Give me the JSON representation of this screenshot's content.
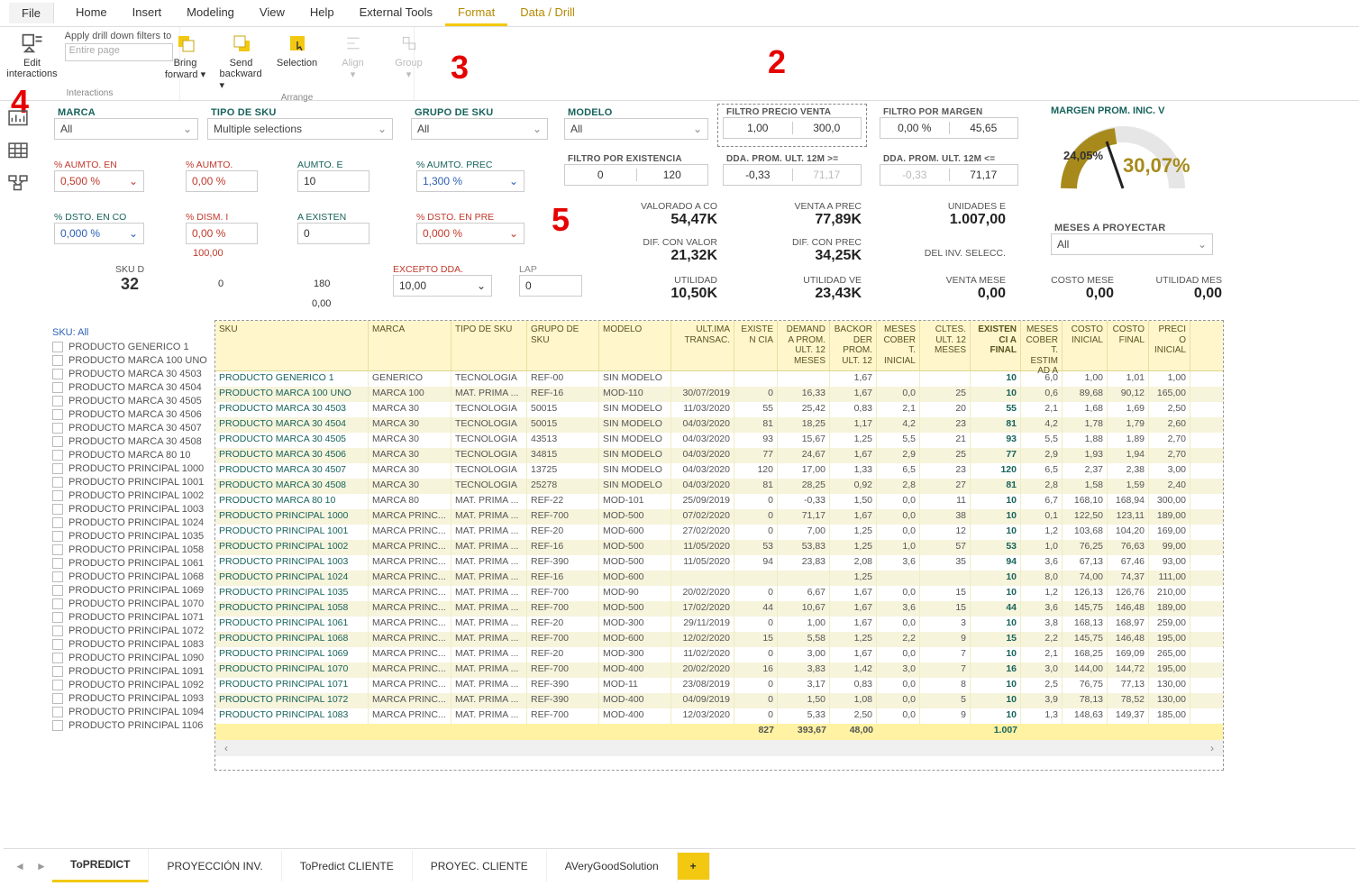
{
  "menu": {
    "file": "File",
    "tabs": [
      "Home",
      "Insert",
      "Modeling",
      "View",
      "Help",
      "External Tools",
      "Format",
      "Data / Drill"
    ]
  },
  "ribbon": {
    "interactions": {
      "edit": "Edit",
      "interactions": "interactions",
      "apply": "Apply drill down filters to",
      "placeholder": "Entire page",
      "group": "Interactions"
    },
    "arrange": {
      "bring": "Bring",
      "fwd": "forward",
      "send": "Send",
      "bwd": "backward",
      "selection": "Selection",
      "align": "Align",
      "groupb": "Group",
      "group": "Arrange"
    }
  },
  "ann": {
    "n2": "2",
    "n3": "3",
    "n4": "4",
    "n5": "5"
  },
  "slicers": {
    "marca": {
      "title": "MARCA",
      "sel": "All"
    },
    "tiposku": {
      "title": "TIPO DE SKU",
      "sel": "Multiple selections"
    },
    "gruposku": {
      "title": "GRUPO DE SKU",
      "sel": "All"
    },
    "modelo": {
      "title": "MODELO",
      "sel": "All"
    },
    "fpv": {
      "title": "FILTRO PRECIO VENTA",
      "a": "1,00",
      "b": "300,0"
    },
    "fpm": {
      "title": "FILTRO POR MARGEN",
      "a": "0,00 %",
      "b": "45,65"
    },
    "pctAumtoEn": {
      "label": "% AUMTO. EN",
      "val": "0,500 %"
    },
    "pctAumto": {
      "label": "% AUMTO.",
      "val": "0,00 %"
    },
    "aumtoE": {
      "label": "AUMTO. E",
      "val": "10"
    },
    "pctAumtoPrec": {
      "label": "% AUMTO. PREC",
      "val": "1,300 %"
    },
    "pctDstoEnCo": {
      "label": "% DSTO. EN CO",
      "val": "0,000 %"
    },
    "pctDismI": {
      "label": "% DISM. I",
      "val": "0,00 %"
    },
    "aExisten": {
      "label": "A EXISTEN",
      "val": "0"
    },
    "pctDstoEnPre": {
      "label": "% DSTO. EN PRE",
      "val": "0,000 %"
    },
    "skuD": {
      "label": "SKU D",
      "val": "32"
    },
    "z100": {
      "val": "100,00"
    },
    "z0": {
      "val": "0"
    },
    "z180": {
      "val": "180"
    },
    "z0b": {
      "val": "0,00"
    },
    "exceptoDda": {
      "label": "EXCEPTO DDA.",
      "val": "10,00"
    },
    "lap": {
      "label": "LAP",
      "val": "0"
    },
    "fpe": {
      "title": "FILTRO POR EXISTENCIA",
      "a": "0",
      "b": "120"
    },
    "ddage": {
      "title": "DDA. PROM. ULT. 12M >=",
      "a": "-0,33",
      "b": "71,17"
    },
    "ddale": {
      "title": "DDA. PROM. ULT. 12M <=",
      "a": "-0,33",
      "b": "71,17"
    }
  },
  "kpis": {
    "valc": {
      "label": "VALORADO A CO",
      "val": "54,47K"
    },
    "venp": {
      "label": "VENTA A PREC",
      "val": "77,89K"
    },
    "unid": {
      "label": "UNIDADES E",
      "val": "1.007,00"
    },
    "difv": {
      "label": "DIF. CON VALOR",
      "val": "21,32K"
    },
    "difp": {
      "label": "DIF. CON PREC",
      "val": "34,25K"
    },
    "delinv": {
      "label": "DEL INV. SELECC.",
      "val": ""
    },
    "util": {
      "label": "UTILIDAD",
      "val": "10,50K"
    },
    "utilv": {
      "label": "UTILIDAD VE",
      "val": "23,43K"
    },
    "vmese": {
      "label": "VENTA MESE",
      "val": "0,00"
    },
    "cmese": {
      "label": "COSTO MESE",
      "val": "0,00"
    },
    "umese": {
      "label": "UTILIDAD MES",
      "val": "0,00"
    }
  },
  "gauge": {
    "title": "MARGEN PROM. INIC. V",
    "left": "24,05%",
    "right": "30,07%",
    "meses": {
      "title": "MESES A PROYECTAR",
      "sel": "All"
    }
  },
  "skuFilter": {
    "hdr": "SKU: All",
    "items": [
      "PRODUCTO GENERICO 1",
      "PRODUCTO MARCA 100 UNO",
      "PRODUCTO MARCA 30 4503",
      "PRODUCTO MARCA 30 4504",
      "PRODUCTO MARCA 30 4505",
      "PRODUCTO MARCA 30 4506",
      "PRODUCTO MARCA 30 4507",
      "PRODUCTO MARCA 30 4508",
      "PRODUCTO MARCA 80 10",
      "PRODUCTO PRINCIPAL 1000",
      "PRODUCTO PRINCIPAL 1001",
      "PRODUCTO PRINCIPAL 1002",
      "PRODUCTO PRINCIPAL 1003",
      "PRODUCTO PRINCIPAL 1024",
      "PRODUCTO PRINCIPAL 1035",
      "PRODUCTO PRINCIPAL 1058",
      "PRODUCTO PRINCIPAL 1061",
      "PRODUCTO PRINCIPAL 1068",
      "PRODUCTO PRINCIPAL 1069",
      "PRODUCTO PRINCIPAL 1070",
      "PRODUCTO PRINCIPAL 1071",
      "PRODUCTO PRINCIPAL 1072",
      "PRODUCTO PRINCIPAL 1083",
      "PRODUCTO PRINCIPAL 1090",
      "PRODUCTO PRINCIPAL 1091",
      "PRODUCTO PRINCIPAL 1092",
      "PRODUCTO PRINCIPAL 1093",
      "PRODUCTO PRINCIPAL 1094",
      "PRODUCTO PRINCIPAL 1106"
    ]
  },
  "table": {
    "headers": [
      "SKU",
      "MARCA",
      "TIPO DE SKU",
      "GRUPO DE SKU",
      "MODELO",
      "ULT.IMA TRANSAC.",
      "EXISTEN CIA",
      "DEMANDA PROM. ULT. 12 MESES",
      "BACKOR DER PROM. ULT. 12",
      "MESES COBERT. INICIAL",
      "CLTES. ULT. 12 MESES",
      "EXISTENCI A FINAL",
      "MESES COBERT. ESTIMAD A",
      "COSTO INICIAL",
      "COSTO FINAL",
      "PRECIO INICIAL"
    ],
    "rows": [
      [
        "PRODUCTO GENERICO 1",
        "GENERICO",
        "TECNOLOGIA",
        "REF-00",
        "SIN MODELO",
        "",
        "",
        "",
        "1,67",
        "",
        "",
        "10",
        "6,0",
        "1,00",
        "1,01",
        "1,00"
      ],
      [
        "PRODUCTO MARCA 100 UNO",
        "MARCA 100",
        "MAT. PRIMA ...",
        "REF-16",
        "MOD-110",
        "30/07/2019",
        "0",
        "16,33",
        "1,67",
        "0,0",
        "25",
        "10",
        "0,6",
        "89,68",
        "90,12",
        "165,00"
      ],
      [
        "PRODUCTO MARCA 30 4503",
        "MARCA 30",
        "TECNOLOGIA",
        "50015",
        "SIN MODELO",
        "11/03/2020",
        "55",
        "25,42",
        "0,83",
        "2,1",
        "20",
        "55",
        "2,1",
        "1,68",
        "1,69",
        "2,50"
      ],
      [
        "PRODUCTO MARCA 30 4504",
        "MARCA 30",
        "TECNOLOGIA",
        "50015",
        "SIN MODELO",
        "04/03/2020",
        "81",
        "18,25",
        "1,17",
        "4,2",
        "23",
        "81",
        "4,2",
        "1,78",
        "1,79",
        "2,60"
      ],
      [
        "PRODUCTO MARCA 30 4505",
        "MARCA 30",
        "TECNOLOGIA",
        "43513",
        "SIN MODELO",
        "04/03/2020",
        "93",
        "15,67",
        "1,25",
        "5,5",
        "21",
        "93",
        "5,5",
        "1,88",
        "1,89",
        "2,70"
      ],
      [
        "PRODUCTO MARCA 30 4506",
        "MARCA 30",
        "TECNOLOGIA",
        "34815",
        "SIN MODELO",
        "04/03/2020",
        "77",
        "24,67",
        "1,67",
        "2,9",
        "25",
        "77",
        "2,9",
        "1,93",
        "1,94",
        "2,70"
      ],
      [
        "PRODUCTO MARCA 30 4507",
        "MARCA 30",
        "TECNOLOGIA",
        "13725",
        "SIN MODELO",
        "04/03/2020",
        "120",
        "17,00",
        "1,33",
        "6,5",
        "23",
        "120",
        "6,5",
        "2,37",
        "2,38",
        "3,00"
      ],
      [
        "PRODUCTO MARCA 30 4508",
        "MARCA 30",
        "TECNOLOGIA",
        "25278",
        "SIN MODELO",
        "04/03/2020",
        "81",
        "28,25",
        "0,92",
        "2,8",
        "27",
        "81",
        "2,8",
        "1,58",
        "1,59",
        "2,40"
      ],
      [
        "PRODUCTO MARCA 80 10",
        "MARCA 80",
        "MAT. PRIMA ...",
        "REF-22",
        "MOD-101",
        "25/09/2019",
        "0",
        "-0,33",
        "1,50",
        "0,0",
        "11",
        "10",
        "6,7",
        "168,10",
        "168,94",
        "300,00"
      ],
      [
        "PRODUCTO PRINCIPAL 1000",
        "MARCA PRINC...",
        "MAT. PRIMA ...",
        "REF-700",
        "MOD-500",
        "07/02/2020",
        "0",
        "71,17",
        "1,67",
        "0,0",
        "38",
        "10",
        "0,1",
        "122,50",
        "123,11",
        "189,00"
      ],
      [
        "PRODUCTO PRINCIPAL 1001",
        "MARCA PRINC...",
        "MAT. PRIMA ...",
        "REF-20",
        "MOD-600",
        "27/02/2020",
        "0",
        "7,00",
        "1,25",
        "0,0",
        "12",
        "10",
        "1,2",
        "103,68",
        "104,20",
        "169,00"
      ],
      [
        "PRODUCTO PRINCIPAL 1002",
        "MARCA PRINC...",
        "MAT. PRIMA ...",
        "REF-16",
        "MOD-500",
        "11/05/2020",
        "53",
        "53,83",
        "1,25",
        "1,0",
        "57",
        "53",
        "1,0",
        "76,25",
        "76,63",
        "99,00"
      ],
      [
        "PRODUCTO PRINCIPAL 1003",
        "MARCA PRINC...",
        "MAT. PRIMA ...",
        "REF-390",
        "MOD-500",
        "11/05/2020",
        "94",
        "23,83",
        "2,08",
        "3,6",
        "35",
        "94",
        "3,6",
        "67,13",
        "67,46",
        "93,00"
      ],
      [
        "PRODUCTO PRINCIPAL 1024",
        "MARCA PRINC...",
        "MAT. PRIMA ...",
        "REF-16",
        "MOD-600",
        "",
        "",
        "",
        "1,25",
        "",
        "",
        "10",
        "8,0",
        "74,00",
        "74,37",
        "111,00"
      ],
      [
        "PRODUCTO PRINCIPAL 1035",
        "MARCA PRINC...",
        "MAT. PRIMA ...",
        "REF-700",
        "MOD-90",
        "20/02/2020",
        "0",
        "6,67",
        "1,67",
        "0,0",
        "15",
        "10",
        "1,2",
        "126,13",
        "126,76",
        "210,00"
      ],
      [
        "PRODUCTO PRINCIPAL 1058",
        "MARCA PRINC...",
        "MAT. PRIMA ...",
        "REF-700",
        "MOD-500",
        "17/02/2020",
        "44",
        "10,67",
        "1,67",
        "3,6",
        "15",
        "44",
        "3,6",
        "145,75",
        "146,48",
        "189,00"
      ],
      [
        "PRODUCTO PRINCIPAL 1061",
        "MARCA PRINC...",
        "MAT. PRIMA ...",
        "REF-20",
        "MOD-300",
        "29/11/2019",
        "0",
        "1,00",
        "1,67",
        "0,0",
        "3",
        "10",
        "3,8",
        "168,13",
        "168,97",
        "259,00"
      ],
      [
        "PRODUCTO PRINCIPAL 1068",
        "MARCA PRINC...",
        "MAT. PRIMA ...",
        "REF-700",
        "MOD-600",
        "12/02/2020",
        "15",
        "5,58",
        "1,25",
        "2,2",
        "9",
        "15",
        "2,2",
        "145,75",
        "146,48",
        "195,00"
      ],
      [
        "PRODUCTO PRINCIPAL 1069",
        "MARCA PRINC...",
        "MAT. PRIMA ...",
        "REF-20",
        "MOD-300",
        "11/02/2020",
        "0",
        "3,00",
        "1,67",
        "0,0",
        "7",
        "10",
        "2,1",
        "168,25",
        "169,09",
        "265,00"
      ],
      [
        "PRODUCTO PRINCIPAL 1070",
        "MARCA PRINC...",
        "MAT. PRIMA ...",
        "REF-700",
        "MOD-400",
        "20/02/2020",
        "16",
        "3,83",
        "1,42",
        "3,0",
        "7",
        "16",
        "3,0",
        "144,00",
        "144,72",
        "195,00"
      ],
      [
        "PRODUCTO PRINCIPAL 1071",
        "MARCA PRINC...",
        "MAT. PRIMA ...",
        "REF-390",
        "MOD-11",
        "23/08/2019",
        "0",
        "3,17",
        "0,83",
        "0,0",
        "8",
        "10",
        "2,5",
        "76,75",
        "77,13",
        "130,00"
      ],
      [
        "PRODUCTO PRINCIPAL 1072",
        "MARCA PRINC...",
        "MAT. PRIMA ...",
        "REF-390",
        "MOD-400",
        "04/09/2019",
        "0",
        "1,50",
        "1,08",
        "0,0",
        "5",
        "10",
        "3,9",
        "78,13",
        "78,52",
        "130,00"
      ],
      [
        "PRODUCTO PRINCIPAL 1083",
        "MARCA PRINC...",
        "MAT. PRIMA ...",
        "REF-700",
        "MOD-400",
        "12/03/2020",
        "0",
        "5,33",
        "2,50",
        "0,0",
        "9",
        "10",
        "1,3",
        "148,63",
        "149,37",
        "185,00"
      ]
    ],
    "total": [
      "",
      "",
      "",
      "",
      "",
      "",
      "827",
      "393,67",
      "48,00",
      "",
      "",
      "1.007",
      "",
      "",
      "",
      ""
    ]
  },
  "btabs": {
    "items": [
      "ToPREDICT",
      "PROYECCIÓN INV.",
      "ToPredict CLIENTE",
      "PROYEC. CLIENTE",
      "AVeryGoodSolution"
    ],
    "add": "+"
  }
}
